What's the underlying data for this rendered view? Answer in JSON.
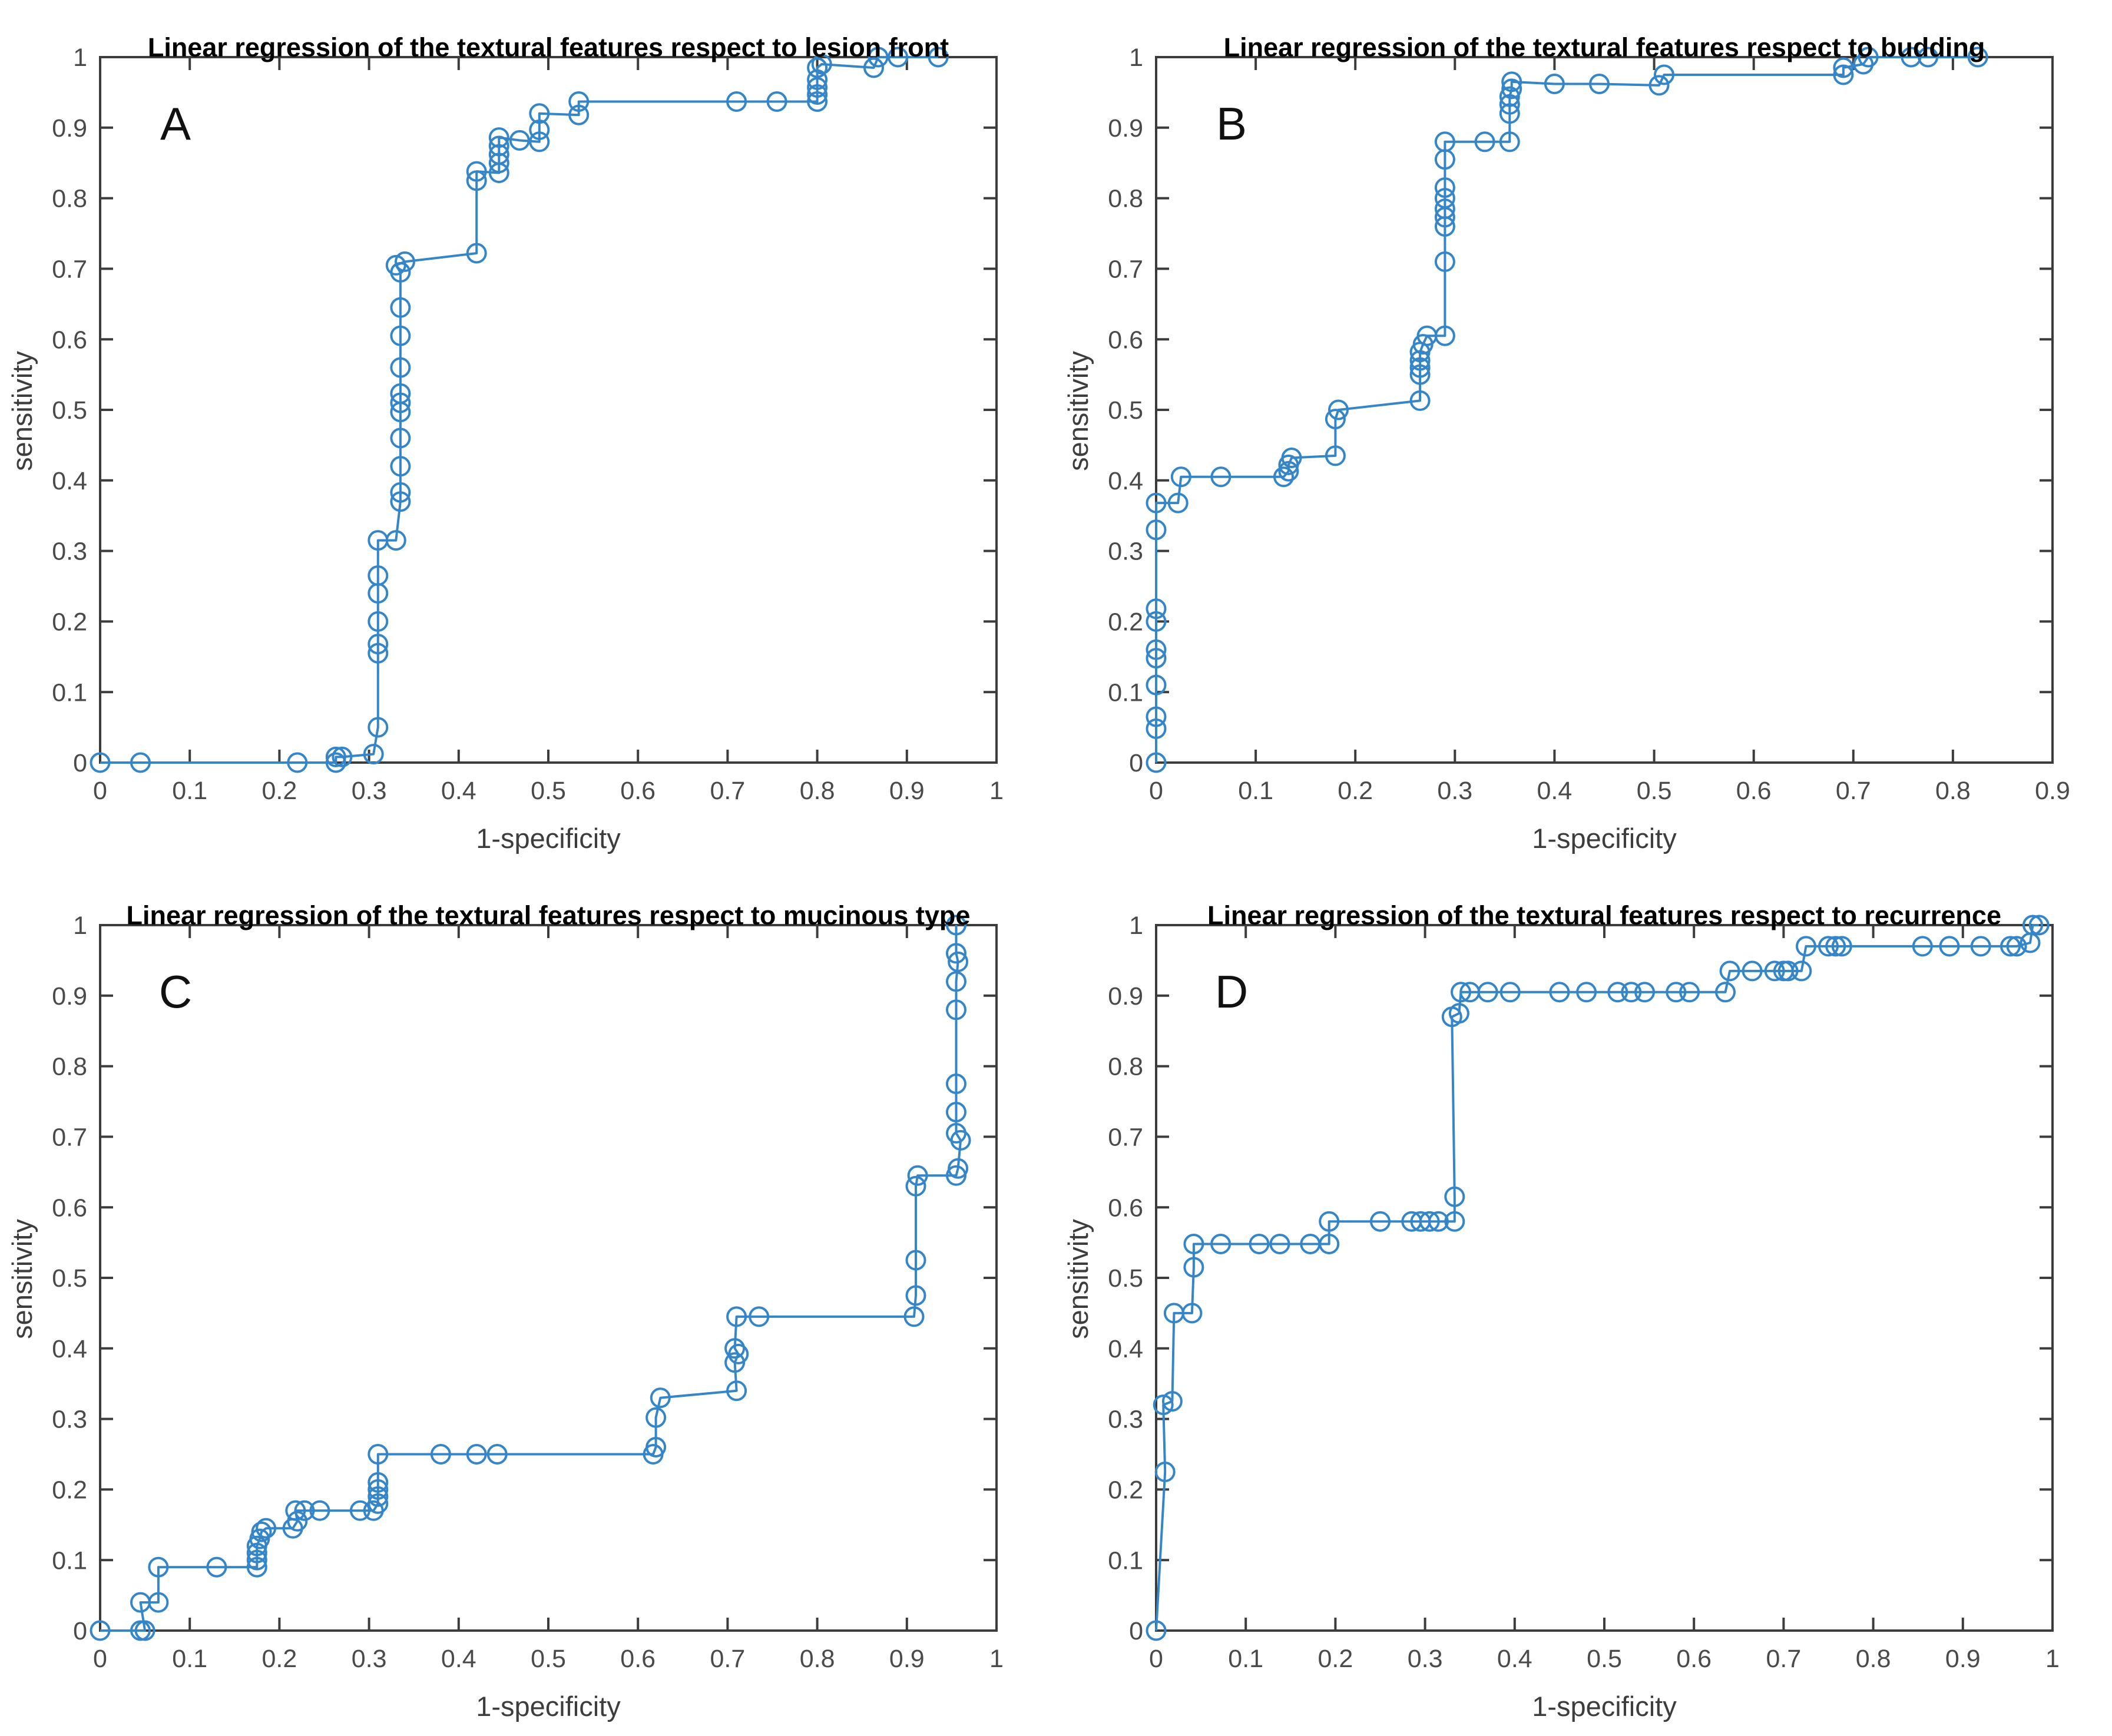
{
  "figure": {
    "background": "#ffffff",
    "panel_count": 4
  },
  "colors": {
    "curve": "#3585c9",
    "axis": "#3c3c3c",
    "tick_label": "#4a4a4a",
    "title": "#000000",
    "axis_label": "#3d3d3d"
  },
  "chart_data": [
    {
      "type": "line",
      "panel_label": "A",
      "title": "Linear regression of the textural features respect to lesion front",
      "xlabel": "1-specificity",
      "ylabel": "sensitivity",
      "xlim": [
        0,
        1
      ],
      "ylim": [
        0,
        1
      ],
      "xticks": [
        "0",
        "0.1",
        "0.2",
        "0.3",
        "0.4",
        "0.5",
        "0.6",
        "0.7",
        "0.8",
        "0.9",
        "1"
      ],
      "yticks": [
        "0",
        "0.1",
        "0.2",
        "0.3",
        "0.4",
        "0.5",
        "0.6",
        "0.7",
        "0.8",
        "0.9",
        "1"
      ],
      "grid": false,
      "legend": null,
      "marker": "circle",
      "points": [
        [
          0,
          0
        ],
        [
          0.045,
          0
        ],
        [
          0.22,
          0
        ],
        [
          0.263,
          0
        ],
        [
          0.263,
          0.008
        ],
        [
          0.27,
          0.008
        ],
        [
          0.305,
          0.012
        ],
        [
          0.31,
          0.05
        ],
        [
          0.31,
          0.155
        ],
        [
          0.31,
          0.168
        ],
        [
          0.31,
          0.2
        ],
        [
          0.31,
          0.24
        ],
        [
          0.31,
          0.265
        ],
        [
          0.31,
          0.315
        ],
        [
          0.33,
          0.315
        ],
        [
          0.335,
          0.37
        ],
        [
          0.335,
          0.383
        ],
        [
          0.335,
          0.42
        ],
        [
          0.335,
          0.46
        ],
        [
          0.335,
          0.497
        ],
        [
          0.335,
          0.51
        ],
        [
          0.335,
          0.523
        ],
        [
          0.335,
          0.56
        ],
        [
          0.335,
          0.605
        ],
        [
          0.335,
          0.645
        ],
        [
          0.335,
          0.695
        ],
        [
          0.33,
          0.705
        ],
        [
          0.34,
          0.71
        ],
        [
          0.42,
          0.722
        ],
        [
          0.42,
          0.825
        ],
        [
          0.42,
          0.838
        ],
        [
          0.445,
          0.836
        ],
        [
          0.445,
          0.85
        ],
        [
          0.445,
          0.862
        ],
        [
          0.445,
          0.874
        ],
        [
          0.445,
          0.886
        ],
        [
          0.468,
          0.882
        ],
        [
          0.49,
          0.88
        ],
        [
          0.49,
          0.897
        ],
        [
          0.49,
          0.92
        ],
        [
          0.534,
          0.918
        ],
        [
          0.534,
          0.937
        ],
        [
          0.71,
          0.937
        ],
        [
          0.755,
          0.937
        ],
        [
          0.8,
          0.937
        ],
        [
          0.8,
          0.947
        ],
        [
          0.8,
          0.957
        ],
        [
          0.8,
          0.968
        ],
        [
          0.8,
          0.985
        ],
        [
          0.805,
          0.99
        ],
        [
          0.863,
          0.985
        ],
        [
          0.868,
          1
        ],
        [
          0.89,
          1
        ],
        [
          0.935,
          1
        ]
      ]
    },
    {
      "type": "line",
      "panel_label": "B",
      "title": "Linear regression of the textural features respect to budding",
      "xlabel": "1-specificity",
      "ylabel": "sensitivity",
      "xlim": [
        0,
        0.9
      ],
      "ylim": [
        0,
        1
      ],
      "xticks": [
        "0",
        "0.1",
        "0.2",
        "0.3",
        "0.4",
        "0.5",
        "0.6",
        "0.7",
        "0.8",
        "0.9"
      ],
      "yticks": [
        "0",
        "0.1",
        "0.2",
        "0.3",
        "0.4",
        "0.5",
        "0.6",
        "0.7",
        "0.8",
        "0.9",
        "1"
      ],
      "grid": false,
      "legend": null,
      "marker": "circle",
      "points": [
        [
          0,
          0
        ],
        [
          0,
          0.048
        ],
        [
          0,
          0.065
        ],
        [
          0,
          0.11
        ],
        [
          0,
          0.148
        ],
        [
          0,
          0.16
        ],
        [
          0,
          0.2
        ],
        [
          0,
          0.218
        ],
        [
          0,
          0.33
        ],
        [
          0,
          0.368
        ],
        [
          0.022,
          0.368
        ],
        [
          0.025,
          0.405
        ],
        [
          0.065,
          0.405
        ],
        [
          0.128,
          0.405
        ],
        [
          0.133,
          0.413
        ],
        [
          0.133,
          0.422
        ],
        [
          0.136,
          0.432
        ],
        [
          0.18,
          0.435
        ],
        [
          0.18,
          0.487
        ],
        [
          0.183,
          0.5
        ],
        [
          0.265,
          0.513
        ],
        [
          0.265,
          0.55
        ],
        [
          0.265,
          0.56
        ],
        [
          0.265,
          0.57
        ],
        [
          0.265,
          0.582
        ],
        [
          0.268,
          0.593
        ],
        [
          0.272,
          0.605
        ],
        [
          0.29,
          0.605
        ],
        [
          0.29,
          0.71
        ],
        [
          0.29,
          0.76
        ],
        [
          0.29,
          0.773
        ],
        [
          0.29,
          0.785
        ],
        [
          0.29,
          0.8
        ],
        [
          0.29,
          0.815
        ],
        [
          0.29,
          0.855
        ],
        [
          0.29,
          0.88
        ],
        [
          0.33,
          0.88
        ],
        [
          0.355,
          0.88
        ],
        [
          0.355,
          0.92
        ],
        [
          0.355,
          0.933
        ],
        [
          0.355,
          0.944
        ],
        [
          0.357,
          0.955
        ],
        [
          0.357,
          0.965
        ],
        [
          0.4,
          0.962
        ],
        [
          0.445,
          0.962
        ],
        [
          0.505,
          0.96
        ],
        [
          0.51,
          0.975
        ],
        [
          0.69,
          0.975
        ],
        [
          0.69,
          0.985
        ],
        [
          0.71,
          0.99
        ],
        [
          0.715,
          1
        ],
        [
          0.758,
          1
        ],
        [
          0.775,
          1
        ],
        [
          0.825,
          1
        ]
      ]
    },
    {
      "type": "line",
      "panel_label": "C",
      "title": "Linear regression of the textural features respect to mucinous type",
      "xlabel": "1-specificity",
      "ylabel": "sensitivity",
      "xlim": [
        0,
        1
      ],
      "ylim": [
        0,
        1
      ],
      "xticks": [
        "0",
        "0.1",
        "0.2",
        "0.3",
        "0.4",
        "0.5",
        "0.6",
        "0.7",
        "0.8",
        "0.9",
        "1"
      ],
      "yticks": [
        "0",
        "0.1",
        "0.2",
        "0.3",
        "0.4",
        "0.5",
        "0.6",
        "0.7",
        "0.8",
        "0.9",
        "1"
      ],
      "grid": false,
      "legend": null,
      "marker": "circle",
      "points": [
        [
          0,
          0
        ],
        [
          0.045,
          0
        ],
        [
          0.05,
          0
        ],
        [
          0.045,
          0.04
        ],
        [
          0.065,
          0.04
        ],
        [
          0.065,
          0.09
        ],
        [
          0.13,
          0.09
        ],
        [
          0.175,
          0.09
        ],
        [
          0.175,
          0.1
        ],
        [
          0.175,
          0.11
        ],
        [
          0.175,
          0.12
        ],
        [
          0.178,
          0.13
        ],
        [
          0.18,
          0.14
        ],
        [
          0.185,
          0.145
        ],
        [
          0.215,
          0.145
        ],
        [
          0.22,
          0.155
        ],
        [
          0.218,
          0.17
        ],
        [
          0.228,
          0.17
        ],
        [
          0.245,
          0.17
        ],
        [
          0.29,
          0.17
        ],
        [
          0.305,
          0.17
        ],
        [
          0.31,
          0.18
        ],
        [
          0.31,
          0.19
        ],
        [
          0.31,
          0.2
        ],
        [
          0.31,
          0.21
        ],
        [
          0.31,
          0.25
        ],
        [
          0.38,
          0.25
        ],
        [
          0.42,
          0.25
        ],
        [
          0.443,
          0.25
        ],
        [
          0.617,
          0.25
        ],
        [
          0.62,
          0.26
        ],
        [
          0.62,
          0.302
        ],
        [
          0.625,
          0.33
        ],
        [
          0.71,
          0.34
        ],
        [
          0.708,
          0.38
        ],
        [
          0.712,
          0.392
        ],
        [
          0.708,
          0.4
        ],
        [
          0.71,
          0.445
        ],
        [
          0.735,
          0.445
        ],
        [
          0.908,
          0.445
        ],
        [
          0.91,
          0.475
        ],
        [
          0.91,
          0.525
        ],
        [
          0.91,
          0.63
        ],
        [
          0.912,
          0.645
        ],
        [
          0.955,
          0.645
        ],
        [
          0.957,
          0.655
        ],
        [
          0.96,
          0.695
        ],
        [
          0.955,
          0.705
        ],
        [
          0.955,
          0.735
        ],
        [
          0.955,
          0.775
        ],
        [
          0.955,
          0.88
        ],
        [
          0.955,
          0.92
        ],
        [
          0.957,
          0.948
        ],
        [
          0.955,
          0.96
        ],
        [
          0.955,
          1
        ]
      ]
    },
    {
      "type": "line",
      "panel_label": "D",
      "title": "Linear regression of the textural features respect to recurrence",
      "xlabel": "1-specificity",
      "ylabel": "sensitivity",
      "xlim": [
        0,
        1
      ],
      "ylim": [
        0,
        1
      ],
      "xticks": [
        "0",
        "0.1",
        "0.2",
        "0.3",
        "0.4",
        "0.5",
        "0.6",
        "0.7",
        "0.8",
        "0.9",
        "1"
      ],
      "yticks": [
        "0",
        "0.1",
        "0.2",
        "0.3",
        "0.4",
        "0.5",
        "0.6",
        "0.7",
        "0.8",
        "0.9",
        "1"
      ],
      "grid": false,
      "legend": null,
      "marker": "circle",
      "points": [
        [
          0,
          0
        ],
        [
          0.01,
          0.225
        ],
        [
          0.008,
          0.32
        ],
        [
          0.018,
          0.325
        ],
        [
          0.02,
          0.45
        ],
        [
          0.04,
          0.45
        ],
        [
          0.042,
          0.515
        ],
        [
          0.042,
          0.548
        ],
        [
          0.072,
          0.548
        ],
        [
          0.115,
          0.548
        ],
        [
          0.138,
          0.548
        ],
        [
          0.172,
          0.548
        ],
        [
          0.193,
          0.548
        ],
        [
          0.193,
          0.58
        ],
        [
          0.25,
          0.58
        ],
        [
          0.285,
          0.58
        ],
        [
          0.295,
          0.58
        ],
        [
          0.305,
          0.58
        ],
        [
          0.315,
          0.58
        ],
        [
          0.333,
          0.58
        ],
        [
          0.333,
          0.615
        ],
        [
          0.33,
          0.87
        ],
        [
          0.338,
          0.875
        ],
        [
          0.34,
          0.905
        ],
        [
          0.35,
          0.905
        ],
        [
          0.37,
          0.905
        ],
        [
          0.395,
          0.905
        ],
        [
          0.45,
          0.905
        ],
        [
          0.48,
          0.905
        ],
        [
          0.515,
          0.905
        ],
        [
          0.53,
          0.905
        ],
        [
          0.545,
          0.905
        ],
        [
          0.58,
          0.905
        ],
        [
          0.595,
          0.905
        ],
        [
          0.635,
          0.905
        ],
        [
          0.64,
          0.935
        ],
        [
          0.665,
          0.935
        ],
        [
          0.69,
          0.935
        ],
        [
          0.7,
          0.935
        ],
        [
          0.705,
          0.935
        ],
        [
          0.72,
          0.935
        ],
        [
          0.725,
          0.97
        ],
        [
          0.75,
          0.97
        ],
        [
          0.758,
          0.97
        ],
        [
          0.765,
          0.97
        ],
        [
          0.855,
          0.97
        ],
        [
          0.885,
          0.97
        ],
        [
          0.92,
          0.97
        ],
        [
          0.953,
          0.97
        ],
        [
          0.96,
          0.97
        ],
        [
          0.975,
          0.975
        ],
        [
          0.978,
          1
        ],
        [
          0.985,
          1
        ]
      ]
    }
  ]
}
